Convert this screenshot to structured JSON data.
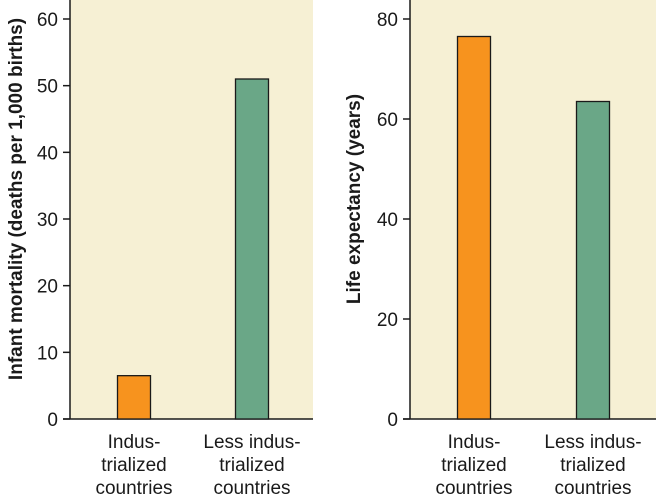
{
  "colors": {
    "panel_bg": "#f6f0d4",
    "industrialized": "#f7931e",
    "less_industrialized": "#6aa787",
    "bar_stroke": "#1a1a1a",
    "axis": "#1a1a1a"
  },
  "chart_data": [
    {
      "type": "bar",
      "ylabel": "Infant mortality (deaths per 1,000 births)",
      "ylim": [
        0,
        60
      ],
      "yticks": [
        0,
        10,
        20,
        30,
        40,
        50,
        60
      ],
      "categories": [
        [
          "Indus-",
          "trialized",
          "countries"
        ],
        [
          "Less indus-",
          "trialized",
          "countries"
        ]
      ],
      "values": [
        6.5,
        51
      ]
    },
    {
      "type": "bar",
      "ylabel": "Life expectancy (years)",
      "ylim": [
        0,
        80
      ],
      "yticks": [
        0,
        20,
        40,
        60,
        80
      ],
      "categories": [
        [
          "Indus-",
          "trialized",
          "countries"
        ],
        [
          "Less indus-",
          "trialized",
          "countries"
        ]
      ],
      "values": [
        76.5,
        63.5
      ]
    }
  ]
}
